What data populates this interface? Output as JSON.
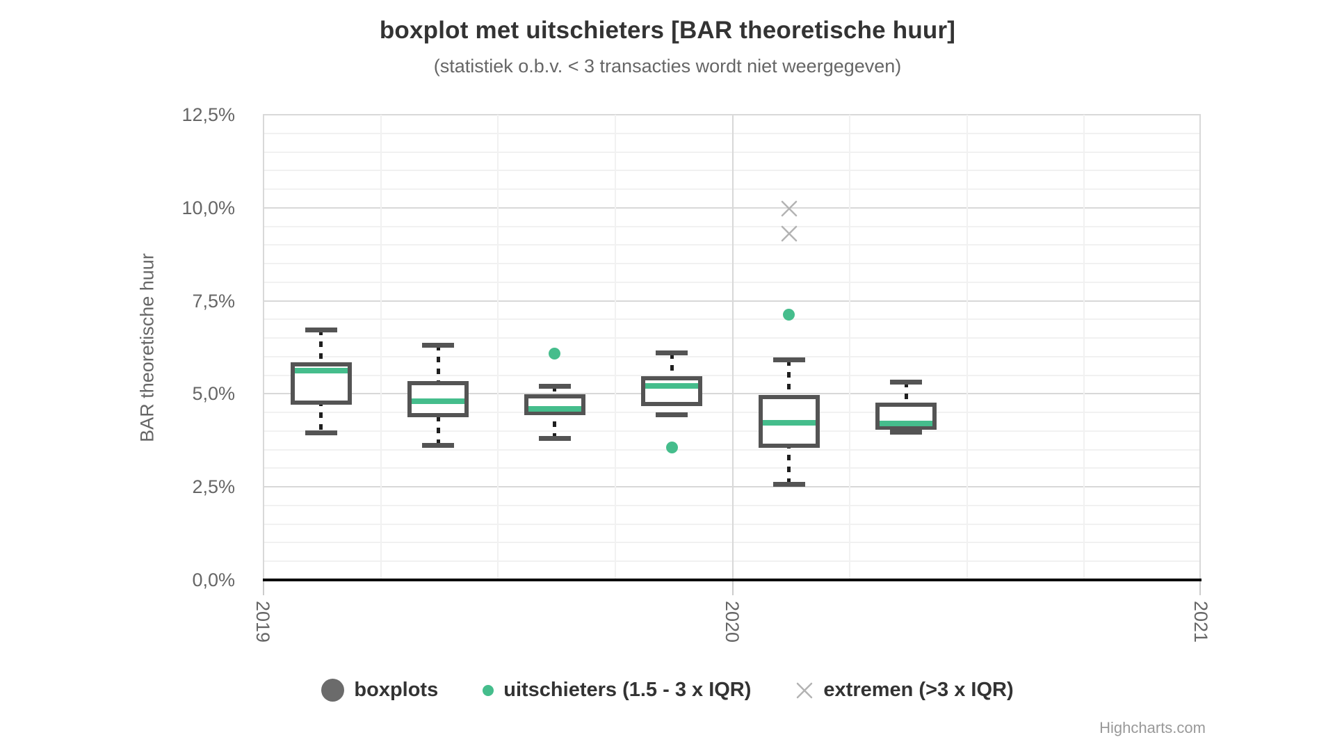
{
  "title": "boxplot met uitschieters [BAR theoretische huur]",
  "subtitle": "(statistiek o.b.v. < 3 transacties wordt niet weergegeven)",
  "y_axis": {
    "title": "BAR theoretische huur",
    "min": 0,
    "max": 12.5,
    "tick_interval": 2.5,
    "minor_interval": 0.5,
    "ticks": [
      {
        "label": "0,0%",
        "value": 0
      },
      {
        "label": "2,5%",
        "value": 2.5
      },
      {
        "label": "5,0%",
        "value": 5
      },
      {
        "label": "7,5%",
        "value": 7.5
      },
      {
        "label": "10,0%",
        "value": 10
      },
      {
        "label": "12,5%",
        "value": 12.5
      }
    ]
  },
  "x_axis": {
    "ticks": [
      {
        "label": "2019",
        "frac": 0
      },
      {
        "label": "2020",
        "frac": 0.5
      },
      {
        "label": "2021",
        "frac": 1
      }
    ],
    "minor_divisions": 8
  },
  "chart_data": {
    "type": "boxplot",
    "title": "boxplot met uitschieters [BAR theoretische huur]",
    "ylabel": "BAR theoretische huur",
    "ylim": [
      0,
      12.5
    ],
    "unit": "%",
    "grid": "major and minor, horizontal and vertical",
    "boxes": [
      {
        "x_frac": 0.062,
        "low": 3.95,
        "q1": 4.77,
        "median": 5.62,
        "q3": 5.8,
        "high": 6.72
      },
      {
        "x_frac": 0.187,
        "low": 3.62,
        "q1": 4.42,
        "median": 4.81,
        "q3": 5.28,
        "high": 6.31
      },
      {
        "x_frac": 0.311,
        "low": 3.81,
        "q1": 4.48,
        "median": 4.6,
        "q3": 4.93,
        "high": 5.21
      },
      {
        "x_frac": 0.436,
        "low": 4.44,
        "q1": 4.72,
        "median": 5.21,
        "q3": 5.42,
        "high": 6.1
      },
      {
        "x_frac": 0.561,
        "low": 2.56,
        "q1": 3.6,
        "median": 4.22,
        "q3": 4.91,
        "high": 5.91
      },
      {
        "x_frac": 0.686,
        "low": 3.97,
        "q1": 4.09,
        "median": 4.2,
        "q3": 4.7,
        "high": 5.32
      }
    ],
    "outliers": [
      {
        "x_frac": 0.311,
        "value": 6.08
      },
      {
        "x_frac": 0.436,
        "value": 3.56
      },
      {
        "x_frac": 0.561,
        "value": 7.13
      }
    ],
    "extremes": [
      {
        "x_frac": 0.561,
        "value": 9.98
      },
      {
        "x_frac": 0.561,
        "value": 9.31
      }
    ]
  },
  "legend": {
    "items": [
      {
        "label": "boxplots",
        "marker": "circle-large",
        "color": "#6b6b6b"
      },
      {
        "label": "uitschieters (1.5 - 3 x IQR)",
        "marker": "circle-small",
        "color": "#45bd8c"
      },
      {
        "label": "extremen (>3 x IQR)",
        "marker": "cross",
        "color": "#b3b3b3"
      }
    ]
  },
  "credit": "Highcharts.com",
  "colors": {
    "box_border": "#545454",
    "box_fill": "#ffffff",
    "median": "#45bd8c",
    "outlier": "#45bd8c",
    "extreme": "#b3b3b3",
    "stem": "#1f1f1f",
    "grid_major": "#d8d8d8",
    "grid_minor": "#f1f1f1",
    "axis_line": "#000000",
    "text_dark": "#333333",
    "text_gray": "#666666",
    "credit": "#999999"
  }
}
